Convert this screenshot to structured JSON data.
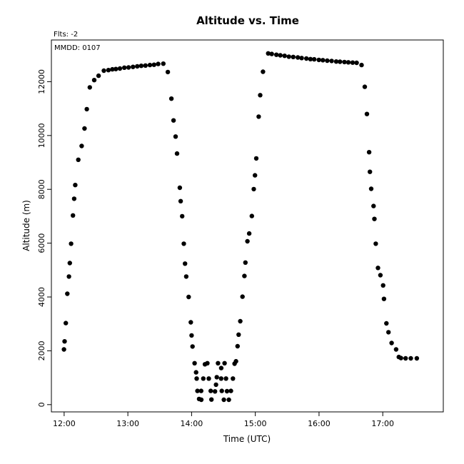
{
  "chart_data": {
    "type": "scatter",
    "title": "Altitude  vs. Time",
    "xlabel": "Time (UTC)",
    "ylabel": "Altitude (m)",
    "annotations": {
      "flts": "Flts: -2",
      "mmdd": "MMDD: 0107"
    },
    "x_unit": "hours UTC",
    "xlim": [
      11.8,
      17.95
    ],
    "ylim": [
      -270,
      13550
    ],
    "x_ticks": [
      {
        "value": 12,
        "label": "12:00"
      },
      {
        "value": 13,
        "label": "13:00"
      },
      {
        "value": 14,
        "label": "14:00"
      },
      {
        "value": 15,
        "label": "15:00"
      },
      {
        "value": 16,
        "label": "16:00"
      },
      {
        "value": 17,
        "label": "17:00"
      }
    ],
    "y_ticks": [
      {
        "value": 0,
        "label": "0"
      },
      {
        "value": 2000,
        "label": "2000"
      },
      {
        "value": 4000,
        "label": "4000"
      },
      {
        "value": 6000,
        "label": "6000"
      },
      {
        "value": 8000,
        "label": "8000"
      },
      {
        "value": 10000,
        "label": "10000"
      },
      {
        "value": 12000,
        "label": "12000"
      }
    ],
    "grid": false,
    "marker_color": "#000000",
    "points": [
      [
        11.997,
        2050
      ],
      [
        12.007,
        2350
      ],
      [
        12.026,
        3030
      ],
      [
        12.05,
        4120
      ],
      [
        12.076,
        4760
      ],
      [
        12.089,
        5260
      ],
      [
        12.109,
        5980
      ],
      [
        12.138,
        7030
      ],
      [
        12.157,
        7650
      ],
      [
        12.174,
        8160
      ],
      [
        12.222,
        9100
      ],
      [
        12.275,
        9610
      ],
      [
        12.32,
        10260
      ],
      [
        12.356,
        10980
      ],
      [
        12.403,
        11790
      ],
      [
        12.472,
        12060
      ],
      [
        12.541,
        12220
      ],
      [
        12.623,
        12410
      ],
      [
        12.695,
        12430
      ],
      [
        12.757,
        12460
      ],
      [
        12.812,
        12470
      ],
      [
        12.875,
        12490
      ],
      [
        12.945,
        12520
      ],
      [
        13.011,
        12530
      ],
      [
        13.08,
        12550
      ],
      [
        13.148,
        12570
      ],
      [
        13.21,
        12590
      ],
      [
        13.277,
        12600
      ],
      [
        13.346,
        12620
      ],
      [
        13.411,
        12630
      ],
      [
        13.476,
        12660
      ],
      [
        13.556,
        12670
      ],
      [
        13.627,
        12360
      ],
      [
        13.683,
        11370
      ],
      [
        13.717,
        10560
      ],
      [
        13.749,
        9960
      ],
      [
        13.772,
        9330
      ],
      [
        13.815,
        8060
      ],
      [
        13.829,
        7560
      ],
      [
        13.852,
        7000
      ],
      [
        13.878,
        5980
      ],
      [
        13.897,
        5240
      ],
      [
        13.916,
        4760
      ],
      [
        13.954,
        4000
      ],
      [
        13.988,
        3060
      ],
      [
        14.0,
        2570
      ],
      [
        14.015,
        2160
      ],
      [
        14.047,
        1540
      ],
      [
        14.071,
        1200
      ],
      [
        14.08,
        970
      ],
      [
        14.092,
        510
      ],
      [
        14.118,
        210
      ],
      [
        14.152,
        180
      ],
      [
        14.15,
        510
      ],
      [
        14.184,
        970
      ],
      [
        14.21,
        1500
      ],
      [
        14.248,
        1540
      ],
      [
        14.27,
        970
      ],
      [
        14.3,
        510
      ],
      [
        14.312,
        190
      ],
      [
        14.368,
        490
      ],
      [
        14.383,
        740
      ],
      [
        14.395,
        1020
      ],
      [
        14.415,
        1540
      ],
      [
        14.465,
        1360
      ],
      [
        14.464,
        970
      ],
      [
        14.474,
        510
      ],
      [
        14.506,
        180
      ],
      [
        14.518,
        1540
      ],
      [
        14.54,
        970
      ],
      [
        14.556,
        500
      ],
      [
        14.585,
        180
      ],
      [
        14.617,
        510
      ],
      [
        14.649,
        970
      ],
      [
        14.675,
        1520
      ],
      [
        14.697,
        1610
      ],
      [
        14.721,
        2170
      ],
      [
        14.738,
        2600
      ],
      [
        14.764,
        3100
      ],
      [
        14.799,
        4010
      ],
      [
        14.829,
        4780
      ],
      [
        14.845,
        5280
      ],
      [
        14.876,
        6070
      ],
      [
        14.904,
        6360
      ],
      [
        14.946,
        7010
      ],
      [
        14.976,
        8010
      ],
      [
        14.995,
        8520
      ],
      [
        15.015,
        9150
      ],
      [
        15.053,
        10700
      ],
      [
        15.077,
        11500
      ],
      [
        15.12,
        12370
      ],
      [
        15.202,
        13050
      ],
      [
        15.258,
        13030
      ],
      [
        15.331,
        13000
      ],
      [
        15.393,
        12980
      ],
      [
        15.46,
        12960
      ],
      [
        15.527,
        12930
      ],
      [
        15.595,
        12920
      ],
      [
        15.667,
        12900
      ],
      [
        15.728,
        12880
      ],
      [
        15.801,
        12860
      ],
      [
        15.865,
        12840
      ],
      [
        15.925,
        12830
      ],
      [
        15.997,
        12810
      ],
      [
        16.06,
        12800
      ],
      [
        16.128,
        12780
      ],
      [
        16.198,
        12770
      ],
      [
        16.27,
        12750
      ],
      [
        16.329,
        12740
      ],
      [
        16.398,
        12730
      ],
      [
        16.46,
        12720
      ],
      [
        16.527,
        12710
      ],
      [
        16.59,
        12700
      ],
      [
        16.667,
        12620
      ],
      [
        16.718,
        11810
      ],
      [
        16.751,
        10800
      ],
      [
        16.786,
        9380
      ],
      [
        16.798,
        8650
      ],
      [
        16.819,
        8020
      ],
      [
        16.856,
        7380
      ],
      [
        16.869,
        6900
      ],
      [
        16.89,
        5980
      ],
      [
        16.925,
        5080
      ],
      [
        16.963,
        4810
      ],
      [
        17.006,
        4430
      ],
      [
        17.019,
        3930
      ],
      [
        17.057,
        3020
      ],
      [
        17.09,
        2690
      ],
      [
        17.139,
        2290
      ],
      [
        17.209,
        2050
      ],
      [
        17.252,
        1770
      ],
      [
        17.286,
        1730
      ],
      [
        17.358,
        1720
      ],
      [
        17.44,
        1720
      ],
      [
        17.534,
        1720
      ]
    ]
  }
}
